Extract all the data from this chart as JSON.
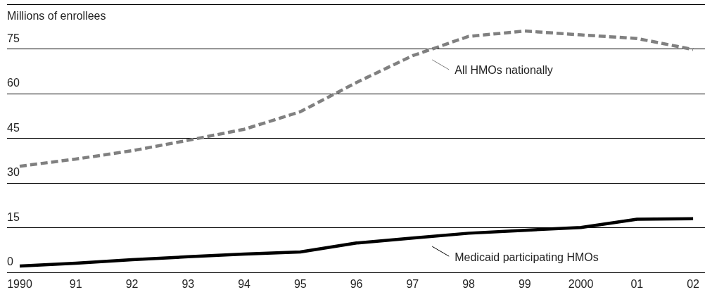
{
  "chart_data": {
    "type": "line",
    "ylabel": "Millions of enrollees",
    "categories": [
      "1990",
      "91",
      "92",
      "93",
      "94",
      "95",
      "96",
      "97",
      "98",
      "99",
      "2000",
      "01",
      "02"
    ],
    "series": [
      {
        "name": "All HMOs nationally",
        "color": "#808080",
        "line_style": "dashed",
        "values": [
          35.6,
          38,
          40.8,
          44.3,
          48,
          53.9,
          63.7,
          72.7,
          79.2,
          81,
          79.7,
          78.5,
          74.8
        ]
      },
      {
        "name": "Medicaid participating HMOs",
        "color": "#000000",
        "line_style": "solid",
        "values": [
          2.1,
          3,
          4.2,
          5.2,
          6.1,
          6.8,
          9.8,
          11.5,
          13.1,
          14.1,
          15,
          17.8,
          18
        ]
      }
    ],
    "ylim": [
      0,
      90
    ],
    "yticks": [
      0,
      15,
      30,
      45,
      60,
      75,
      {
        "value": 90,
        "label": null
      }
    ],
    "grid": "y",
    "legend": "right",
    "marker": "none"
  }
}
